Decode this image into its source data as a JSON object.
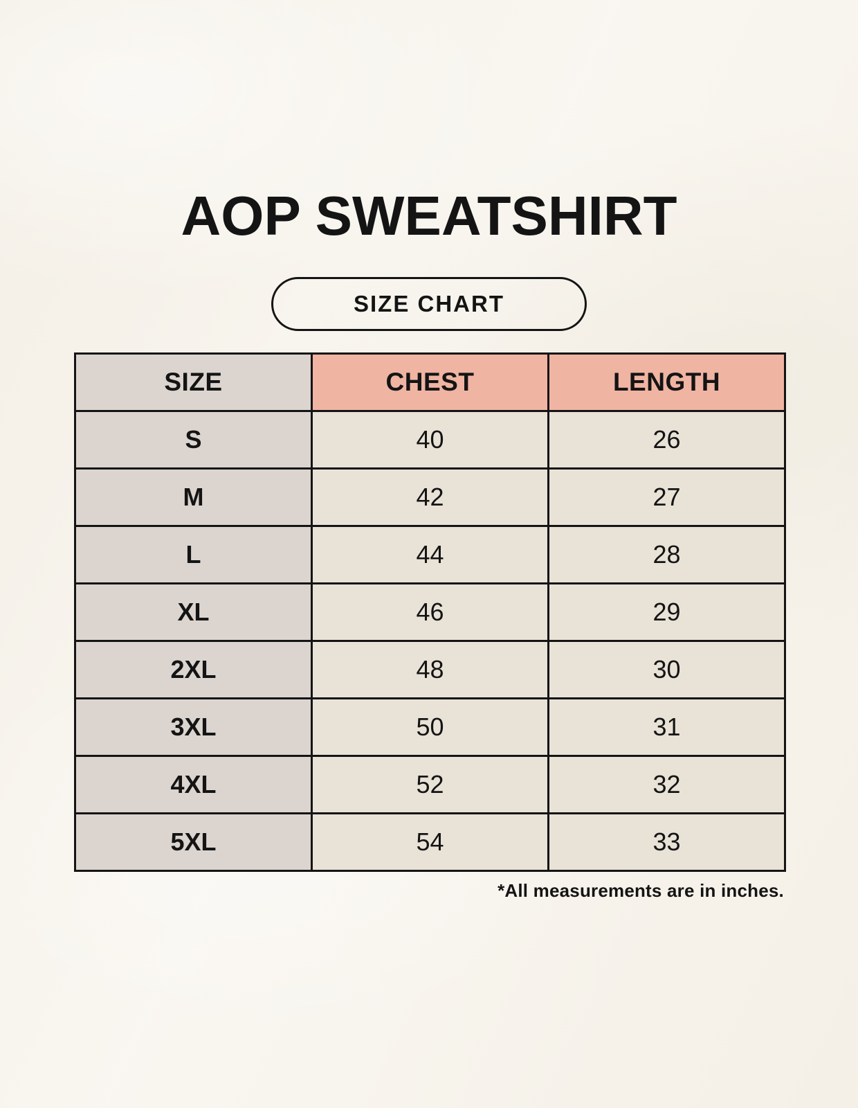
{
  "title": "AOP SWEATSHIRT",
  "badge_label": "SIZE CHART",
  "table": {
    "headers": [
      "SIZE",
      "CHEST",
      "LENGTH"
    ],
    "rows": [
      {
        "size": "S",
        "chest": "40",
        "length": "26"
      },
      {
        "size": "M",
        "chest": "42",
        "length": "27"
      },
      {
        "size": "L",
        "chest": "44",
        "length": "28"
      },
      {
        "size": "XL",
        "chest": "46",
        "length": "29"
      },
      {
        "size": "2XL",
        "chest": "48",
        "length": "30"
      },
      {
        "size": "3XL",
        "chest": "50",
        "length": "31"
      },
      {
        "size": "4XL",
        "chest": "52",
        "length": "32"
      },
      {
        "size": "5XL",
        "chest": "54",
        "length": "33"
      }
    ]
  },
  "footnote": "*All measurements are in inches.",
  "colors": {
    "page-bg": "#F7F3EB",
    "size-col-bg": "#DCD5CF",
    "header-accent-bg": "#F0B4A3",
    "data-cell-bg": "#E9E2D7",
    "border": "#141414",
    "text": "#141414"
  },
  "chart_data": {
    "type": "table",
    "title": "AOP SWEATSHIRT",
    "subtitle": "SIZE CHART",
    "columns": [
      "SIZE",
      "CHEST",
      "LENGTH"
    ],
    "categories": [
      "S",
      "M",
      "L",
      "XL",
      "2XL",
      "3XL",
      "4XL",
      "5XL"
    ],
    "series": [
      {
        "name": "CHEST",
        "values": [
          40,
          42,
          44,
          46,
          48,
          50,
          52,
          54
        ]
      },
      {
        "name": "LENGTH",
        "values": [
          26,
          27,
          28,
          29,
          30,
          31,
          32,
          33
        ]
      }
    ],
    "units": "inches",
    "footnote": "*All measurements are in inches."
  }
}
